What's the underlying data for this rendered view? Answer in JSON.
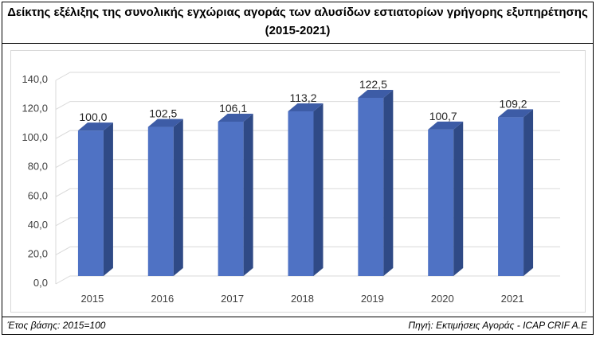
{
  "title": {
    "line1": "Δείκτης εξέλιξης της συνολικής εγχώριας αγοράς των αλυσίδων εστιατορίων γρήγορης εξυπηρέτησης",
    "line2": "(2015-2021)"
  },
  "footer": {
    "left": "Έτος βάσης: 2015=100",
    "right": "Πηγή: Εκτιμήσεις Αγοράς - ICAP CRIF A.E"
  },
  "chart_data": {
    "type": "bar",
    "categories": [
      "2015",
      "2016",
      "2017",
      "2018",
      "2019",
      "2020",
      "2021"
    ],
    "values": [
      100.0,
      102.5,
      106.1,
      113.2,
      122.5,
      100.7,
      109.2
    ],
    "value_labels": [
      "100,0",
      "102,5",
      "106,1",
      "113,2",
      "122,5",
      "100,7",
      "109,2"
    ],
    "yticks": [
      "0,0",
      "20,0",
      "40,0",
      "60,0",
      "80,0",
      "100,0",
      "120,0",
      "140,0"
    ],
    "ylim": [
      0,
      140
    ],
    "grid": true,
    "style": "3d-column",
    "colors": {
      "front": "#4f72c4",
      "side": "#2f4a86",
      "top": "#3d5ca6",
      "grid": "#d9d9d9"
    }
  }
}
